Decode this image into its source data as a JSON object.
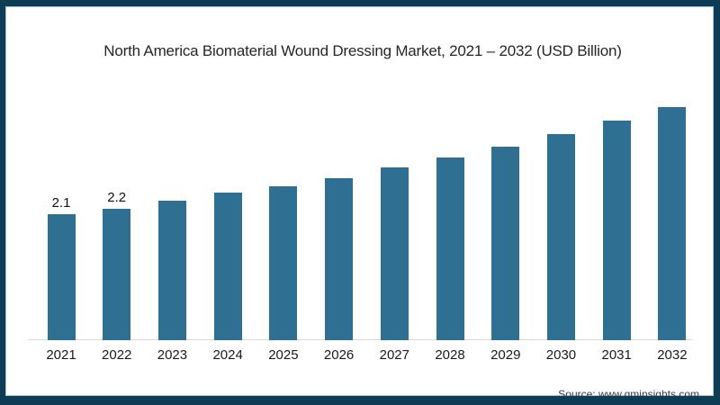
{
  "frame": {
    "border_color": "#0e3c55"
  },
  "chart_data": {
    "type": "bar",
    "title": "North America Biomaterial Wound Dressing Market, 2021 – 2032 (USD Billion)",
    "categories": [
      "2021",
      "2022",
      "2023",
      "2024",
      "2025",
      "2026",
      "2027",
      "2028",
      "2029",
      "2030",
      "2031",
      "2032"
    ],
    "values": [
      2.1,
      2.2,
      2.33,
      2.46,
      2.57,
      2.71,
      2.88,
      3.06,
      3.24,
      3.44,
      3.67,
      3.9
    ],
    "data_labels": [
      "2.1",
      "2.2",
      "",
      "",
      "",
      "",
      "",
      "",
      "",
      "",
      "",
      ""
    ],
    "xlabel": "",
    "ylabel": "",
    "ylim": [
      0,
      4.2
    ],
    "grid": false,
    "legend": "none",
    "bar_color": "#2e6f92",
    "axis_line_color": "#d9d9d9"
  },
  "source": {
    "label": "Source: www.gminsights.com"
  }
}
